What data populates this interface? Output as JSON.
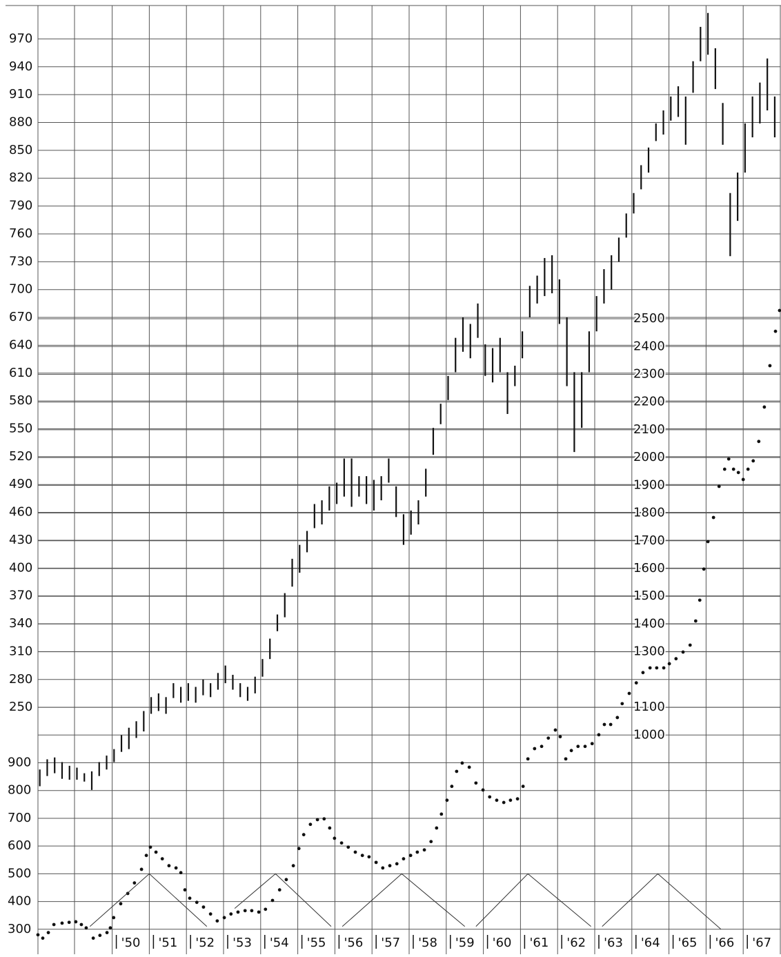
{
  "chart_data": {
    "type": "combo",
    "xlim": [
      1948,
      1968
    ],
    "xticks": [
      {
        "value": 1950,
        "label": "'50"
      },
      {
        "value": 1951,
        "label": "'51"
      },
      {
        "value": 1952,
        "label": "'52"
      },
      {
        "value": 1953,
        "label": "'53"
      },
      {
        "value": 1954,
        "label": "'54"
      },
      {
        "value": 1955,
        "label": "'55"
      },
      {
        "value": 1956,
        "label": "'56"
      },
      {
        "value": 1957,
        "label": "'57"
      },
      {
        "value": 1958,
        "label": "'58"
      },
      {
        "value": 1959,
        "label": "'59"
      },
      {
        "value": 1960,
        "label": "'60"
      },
      {
        "value": 1961,
        "label": "'61"
      },
      {
        "value": 1962,
        "label": "'62"
      },
      {
        "value": 1963,
        "label": "'63"
      },
      {
        "value": 1964,
        "label": "'64"
      },
      {
        "value": 1965,
        "label": "'65"
      },
      {
        "value": 1966,
        "label": "'66"
      },
      {
        "value": 1967,
        "label": "'67"
      }
    ],
    "ylim": [
      -16,
      1006
    ],
    "yticks": [
      250,
      280,
      310,
      340,
      370,
      400,
      430,
      460,
      490,
      520,
      550,
      580,
      610,
      640,
      670,
      700,
      730,
      760,
      790,
      820,
      850,
      880,
      910,
      940,
      970
    ],
    "y2lim": [
      210,
      3629
    ],
    "y2ticks_left": [
      300,
      400,
      500,
      600,
      700,
      800,
      900
    ],
    "y2ticks": [
      1000,
      1100,
      1300,
      1400,
      1500,
      1600,
      1700,
      1800,
      1900,
      2000,
      2100,
      2200,
      2300,
      2400,
      2500
    ],
    "grid": true,
    "series": [
      {
        "type": "range-bar",
        "color": "#111111",
        "x": [
          1948.05,
          1948.25,
          1948.45,
          1948.65,
          1948.85,
          1949.05,
          1949.25,
          1949.45,
          1949.65,
          1949.85,
          1950.05,
          1950.25,
          1950.45,
          1950.65,
          1950.85,
          1951.05,
          1951.25,
          1951.45,
          1951.65,
          1951.85,
          1952.05,
          1952.25,
          1952.45,
          1952.65,
          1952.85,
          1953.05,
          1953.25,
          1953.45,
          1953.65,
          1953.85,
          1954.05,
          1954.25,
          1954.45,
          1954.65,
          1954.85,
          1955.05,
          1955.25,
          1955.45,
          1955.65,
          1955.85,
          1956.05,
          1956.25,
          1956.45,
          1956.65,
          1956.85,
          1957.05,
          1957.25,
          1957.45,
          1957.65,
          1957.85,
          1958.05,
          1958.25,
          1958.45,
          1958.65,
          1958.85,
          1959.05,
          1959.25,
          1959.45,
          1959.65,
          1959.85,
          1960.05,
          1960.25,
          1960.45,
          1960.65,
          1960.85,
          1961.05,
          1961.25,
          1961.45,
          1961.65,
          1961.85,
          1962.05,
          1962.25,
          1962.45,
          1962.65,
          1962.85,
          1963.05,
          1963.25,
          1963.45,
          1963.65,
          1963.85,
          1964.05,
          1964.25,
          1964.45,
          1964.65,
          1964.85,
          1965.05,
          1965.25,
          1965.45,
          1965.65,
          1965.85,
          1966.05,
          1966.25,
          1966.45,
          1966.65,
          1966.85,
          1967.05,
          1967.25,
          1967.45,
          1967.65,
          1967.85
        ],
        "high": [
          183,
          194,
          196,
          191,
          187,
          185,
          179,
          181,
          191,
          198,
          205,
          220,
          228,
          235,
          246,
          261,
          265,
          261,
          276,
          272,
          276,
          272,
          280,
          276,
          287,
          295,
          285,
          276,
          272,
          283,
          302,
          324,
          350,
          373,
          410,
          425,
          440,
          469,
          473,
          488,
          492,
          518,
          518,
          499,
          499,
          495,
          499,
          518,
          488,
          458,
          462,
          473,
          507,
          551,
          577,
          607,
          648,
          670,
          663,
          685,
          641,
          637,
          648,
          611,
          618,
          655,
          704,
          715,
          734,
          737,
          711,
          670,
          611,
          611,
          655,
          693,
          722,
          737,
          756,
          782,
          804,
          834,
          853,
          879,
          893,
          908,
          919,
          908,
          946,
          983,
          998,
          960,
          901,
          804,
          826,
          879,
          908,
          923,
          949,
          908
        ],
        "low": [
          165,
          176,
          179,
          173,
          172,
          172,
          170,
          161,
          176,
          183,
          191,
          202,
          205,
          217,
          224,
          243,
          246,
          243,
          260,
          255,
          257,
          255,
          263,
          261,
          269,
          276,
          269,
          261,
          257,
          265,
          283,
          302,
          332,
          347,
          380,
          395,
          417,
          443,
          447,
          462,
          469,
          477,
          466,
          477,
          469,
          462,
          473,
          492,
          455,
          425,
          436,
          447,
          477,
          522,
          555,
          581,
          611,
          633,
          626,
          648,
          607,
          600,
          611,
          566,
          596,
          626,
          670,
          685,
          693,
          696,
          663,
          596,
          525,
          551,
          611,
          655,
          685,
          700,
          730,
          756,
          782,
          808,
          826,
          860,
          867,
          882,
          886,
          856,
          912,
          946,
          953,
          916,
          856,
          736,
          774,
          826,
          864,
          879,
          893,
          864
        ]
      },
      {
        "type": "scatter",
        "color": "#111111",
        "axis": "y2",
        "x": [
          1948.0,
          1948.13,
          1948.28,
          1948.43,
          1948.65,
          1948.84,
          1949.02,
          1949.17,
          1949.3,
          1949.49,
          1949.67,
          1949.86,
          1949.95,
          1950.04,
          1950.23,
          1950.42,
          1950.6,
          1950.79,
          1950.92,
          1951.03,
          1951.18,
          1951.35,
          1951.53,
          1951.72,
          1951.85,
          1951.96,
          1952.09,
          1952.28,
          1952.46,
          1952.65,
          1952.83,
          1953.02,
          1953.2,
          1953.39,
          1953.58,
          1953.76,
          1953.95,
          1954.13,
          1954.32,
          1954.51,
          1954.69,
          1954.88,
          1955.03,
          1955.16,
          1955.34,
          1955.53,
          1955.71,
          1955.86,
          1955.99,
          1956.18,
          1956.36,
          1956.55,
          1956.74,
          1956.92,
          1957.11,
          1957.29,
          1957.48,
          1957.67,
          1957.85,
          1958.04,
          1958.22,
          1958.41,
          1958.59,
          1958.74,
          1958.87,
          1959.02,
          1959.15,
          1959.28,
          1959.43,
          1959.62,
          1959.8,
          1959.99,
          1960.17,
          1960.36,
          1960.55,
          1960.73,
          1960.92,
          1961.07,
          1961.2,
          1961.38,
          1961.57,
          1961.75,
          1961.94,
          1962.07,
          1962.22,
          1962.37,
          1962.55,
          1962.74,
          1962.93,
          1963.11,
          1963.26,
          1963.43,
          1963.61,
          1963.74,
          1963.93,
          1964.12,
          1964.3,
          1964.49,
          1964.67,
          1964.86,
          1965.01,
          1965.19,
          1965.38,
          1965.57,
          1965.72,
          1965.83,
          1965.94,
          1966.05,
          1966.2,
          1966.35,
          1966.5,
          1966.61,
          1966.74,
          1966.87,
          1967.0,
          1967.13,
          1967.27,
          1967.42,
          1967.57,
          1967.72,
          1967.87,
          1967.98
        ],
        "values": [
          280,
          268,
          288,
          317,
          322,
          325,
          327,
          317,
          305,
          268,
          278,
          288,
          305,
          342,
          392,
          429,
          467,
          516,
          566,
          596,
          578,
          554,
          529,
          521,
          504,
          442,
          412,
          397,
          380,
          355,
          330,
          342,
          355,
          362,
          367,
          367,
          362,
          372,
          404,
          442,
          479,
          529,
          591,
          641,
          678,
          695,
          698,
          665,
          628,
          611,
          596,
          578,
          566,
          561,
          541,
          521,
          529,
          536,
          554,
          566,
          578,
          586,
          616,
          665,
          715,
          765,
          815,
          869,
          899,
          884,
          827,
          802,
          777,
          765,
          757,
          765,
          770,
          815,
          914,
          951,
          959,
          989,
          1018,
          994,
          914,
          944,
          959,
          959,
          969,
          1001,
          1038,
          1038,
          1063,
          1113,
          1150,
          1188,
          1225,
          1242,
          1242,
          1242,
          1257,
          1275,
          1299,
          1324,
          1411,
          1486,
          1598,
          1697,
          1784,
          1896,
          1958,
          1995,
          1958,
          1946,
          1921,
          1958,
          1988,
          2058,
          2182,
          2331,
          2455,
          2530
        ]
      },
      {
        "type": "line",
        "color": "#333333",
        "axis": "y2",
        "x": [
          1949.4,
          1951.0,
          1952.55,
          null,
          1953.3,
          1954.4,
          1955.9,
          null,
          1956.2,
          1957.8,
          1959.5,
          null,
          1959.8,
          1961.2,
          1962.9,
          null,
          1963.2,
          1964.7,
          1966.4
        ],
        "values": [
          310,
          500,
          310,
          null,
          375,
          500,
          310,
          null,
          310,
          500,
          310,
          null,
          310,
          500,
          310,
          null,
          310,
          500,
          300
        ]
      }
    ]
  }
}
